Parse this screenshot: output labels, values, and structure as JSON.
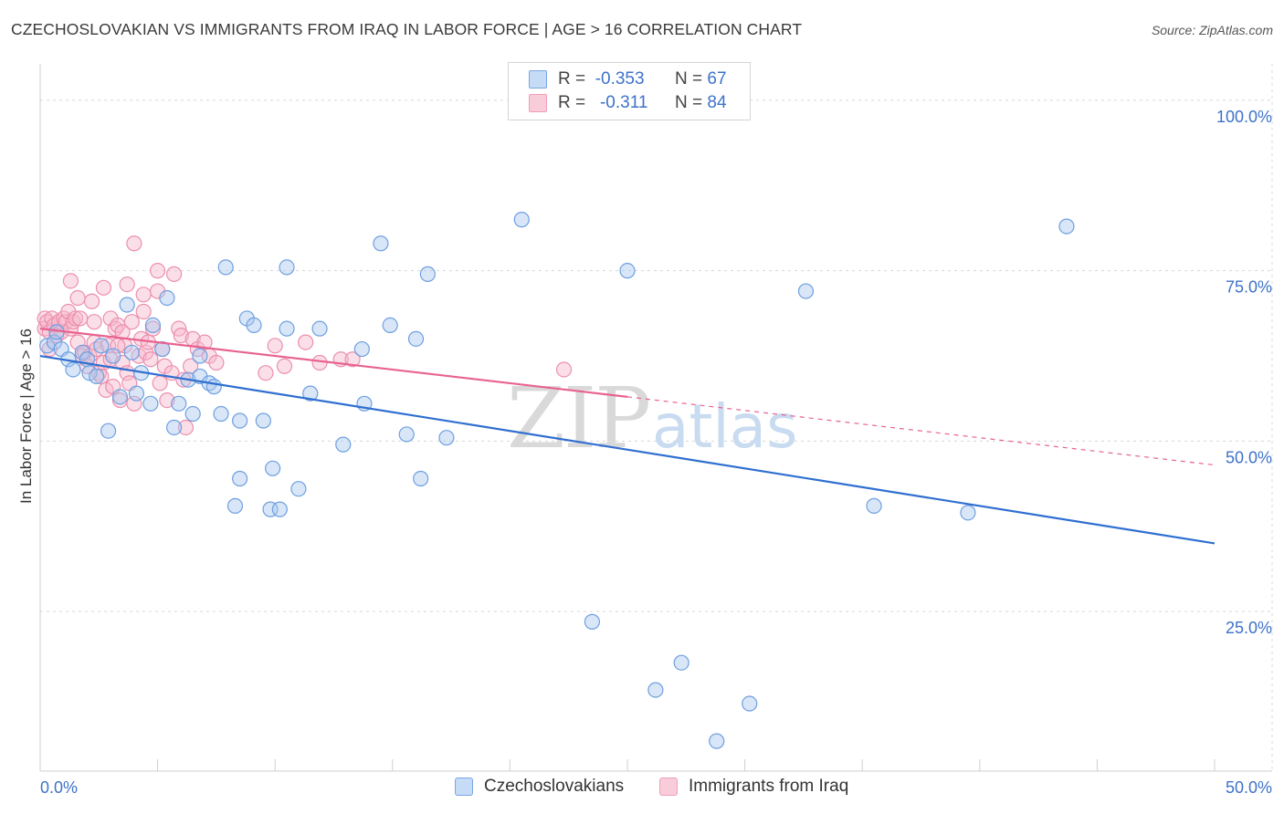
{
  "title": "CZECHOSLOVAKIAN VS IMMIGRANTS FROM IRAQ IN LABOR FORCE | AGE > 16 CORRELATION CHART",
  "source": "Source: ZipAtlas.com",
  "watermark": {
    "zip": "ZIP",
    "atlas": "atlas"
  },
  "colors": {
    "blue_fill": "#a8c8f0",
    "blue_stroke": "#6e9fe0",
    "blue_line": "#2f6fd0",
    "pink_fill": "#f7b8cc",
    "pink_stroke": "#ec8fad",
    "pink_line": "#e8628f",
    "value_text": "#3d72c9",
    "grid": "#d8d8d8"
  },
  "legend": {
    "rows": [
      {
        "r_label": "R =",
        "r_value": "-0.353",
        "n_label": "N =",
        "n_value": "67"
      },
      {
        "r_label": "R =",
        "r_value": "-0.311",
        "n_label": "N =",
        "n_value": "84"
      }
    ]
  },
  "bottom_legend": [
    "Czechoslovakians",
    "Immigrants from Iraq"
  ],
  "chart_data": {
    "type": "scatter",
    "title": "CZECHOSLOVAKIAN VS IMMIGRANTS FROM IRAQ IN LABOR FORCE | AGE > 16 CORRELATION CHART",
    "xlabel": "",
    "ylabel": "In Labor Force | Age > 16",
    "xlim": [
      0,
      50
    ],
    "ylim": [
      2,
      104
    ],
    "x_tick_labels": [
      "0.0%",
      "50.0%"
    ],
    "y_tick_labels": [
      "100.0%",
      "75.0%",
      "50.0%",
      "25.0%"
    ],
    "y_ticks": [
      100,
      75,
      50,
      25
    ],
    "grid": true,
    "legend_position": "top-center",
    "series": [
      {
        "name": "Czechoslovakians",
        "color": "#a8c8f0",
        "r": -0.353,
        "n": 67,
        "trend": {
          "x": [
            0,
            50
          ],
          "y": [
            62.5,
            35.0
          ]
        },
        "points": [
          [
            0.3,
            64.0
          ],
          [
            0.6,
            64.5
          ],
          [
            0.9,
            63.5
          ],
          [
            1.2,
            62.0
          ],
          [
            1.4,
            60.5
          ],
          [
            1.8,
            63.0
          ],
          [
            2.0,
            62.0
          ],
          [
            2.1,
            60.0
          ],
          [
            2.4,
            59.5
          ],
          [
            2.6,
            64.0
          ],
          [
            2.9,
            51.5
          ],
          [
            3.1,
            62.5
          ],
          [
            3.4,
            56.5
          ],
          [
            3.7,
            70.0
          ],
          [
            3.9,
            63.0
          ],
          [
            4.1,
            57.0
          ],
          [
            4.3,
            60.0
          ],
          [
            4.7,
            55.5
          ],
          [
            4.8,
            67.0
          ],
          [
            5.2,
            63.5
          ],
          [
            5.4,
            71.0
          ],
          [
            5.7,
            52.0
          ],
          [
            5.9,
            55.5
          ],
          [
            6.3,
            59.0
          ],
          [
            6.5,
            54.0
          ],
          [
            6.8,
            62.5
          ],
          [
            6.8,
            59.5
          ],
          [
            7.2,
            58.5
          ],
          [
            7.4,
            58.0
          ],
          [
            7.7,
            54.0
          ],
          [
            7.9,
            75.5
          ],
          [
            8.3,
            40.5
          ],
          [
            8.5,
            44.5
          ],
          [
            8.5,
            53.0
          ],
          [
            8.8,
            68.0
          ],
          [
            9.1,
            67.0
          ],
          [
            9.5,
            53.0
          ],
          [
            9.8,
            40.0
          ],
          [
            9.9,
            46.0
          ],
          [
            10.2,
            40.0
          ],
          [
            10.5,
            75.5
          ],
          [
            10.5,
            66.5
          ],
          [
            11.0,
            43.0
          ],
          [
            11.5,
            57.0
          ],
          [
            11.9,
            66.5
          ],
          [
            12.9,
            49.5
          ],
          [
            13.7,
            63.5
          ],
          [
            13.8,
            55.5
          ],
          [
            14.5,
            79.0
          ],
          [
            14.9,
            67.0
          ],
          [
            15.6,
            51.0
          ],
          [
            16.0,
            65.0
          ],
          [
            16.5,
            74.5
          ],
          [
            16.2,
            44.5
          ],
          [
            17.3,
            50.5
          ],
          [
            20.5,
            82.5
          ],
          [
            23.5,
            23.5
          ],
          [
            25.0,
            75.0
          ],
          [
            26.2,
            13.5
          ],
          [
            27.3,
            17.5
          ],
          [
            28.8,
            6.0
          ],
          [
            30.2,
            11.5
          ],
          [
            32.6,
            72.0
          ],
          [
            35.5,
            40.5
          ],
          [
            39.5,
            39.5
          ],
          [
            43.7,
            81.5
          ],
          [
            0.7,
            66.0
          ]
        ]
      },
      {
        "name": "Immigrants from Iraq",
        "color": "#f7b8cc",
        "r": -0.311,
        "n": 84,
        "trend": {
          "x": [
            0,
            25
          ],
          "y": [
            66.5,
            56.5
          ]
        },
        "trend_dashed": {
          "x": [
            25,
            50
          ],
          "y": [
            56.5,
            46.5
          ]
        },
        "points": [
          [
            0.2,
            68.0
          ],
          [
            0.2,
            66.5
          ],
          [
            0.3,
            67.5
          ],
          [
            0.4,
            66.0
          ],
          [
            0.5,
            68.0
          ],
          [
            0.6,
            67.0
          ],
          [
            0.7,
            65.5
          ],
          [
            0.8,
            67.5
          ],
          [
            0.9,
            66.0
          ],
          [
            1.0,
            68.0
          ],
          [
            1.1,
            67.5
          ],
          [
            1.2,
            69.0
          ],
          [
            1.3,
            66.5
          ],
          [
            1.3,
            73.5
          ],
          [
            1.4,
            67.5
          ],
          [
            1.5,
            68.0
          ],
          [
            1.6,
            64.5
          ],
          [
            1.7,
            68.0
          ],
          [
            1.8,
            62.5
          ],
          [
            1.9,
            63.0
          ],
          [
            2.0,
            61.0
          ],
          [
            2.1,
            62.5
          ],
          [
            2.2,
            70.5
          ],
          [
            2.3,
            64.5
          ],
          [
            2.3,
            67.5
          ],
          [
            2.4,
            63.5
          ],
          [
            2.5,
            60.0
          ],
          [
            2.6,
            59.5
          ],
          [
            2.7,
            61.5
          ],
          [
            2.7,
            72.5
          ],
          [
            2.8,
            57.5
          ],
          [
            2.9,
            64.0
          ],
          [
            3.0,
            62.0
          ],
          [
            3.0,
            68.0
          ],
          [
            3.1,
            58.0
          ],
          [
            3.2,
            66.5
          ],
          [
            3.3,
            67.0
          ],
          [
            3.4,
            56.0
          ],
          [
            3.5,
            61.5
          ],
          [
            3.5,
            66.0
          ],
          [
            3.6,
            64.0
          ],
          [
            3.7,
            73.0
          ],
          [
            3.7,
            60.0
          ],
          [
            3.8,
            58.5
          ],
          [
            3.9,
            67.5
          ],
          [
            4.0,
            79.0
          ],
          [
            4.0,
            55.5
          ],
          [
            4.2,
            62.5
          ],
          [
            4.3,
            65.0
          ],
          [
            4.4,
            71.5
          ],
          [
            4.4,
            69.0
          ],
          [
            4.5,
            63.0
          ],
          [
            4.6,
            64.5
          ],
          [
            4.7,
            62.0
          ],
          [
            4.8,
            66.5
          ],
          [
            5.0,
            72.0
          ],
          [
            5.0,
            75.0
          ],
          [
            5.1,
            58.5
          ],
          [
            5.2,
            63.5
          ],
          [
            5.3,
            61.0
          ],
          [
            5.4,
            56.0
          ],
          [
            5.6,
            60.0
          ],
          [
            5.7,
            74.5
          ],
          [
            5.9,
            66.5
          ],
          [
            6.0,
            65.5
          ],
          [
            6.1,
            59.0
          ],
          [
            6.2,
            52.0
          ],
          [
            6.4,
            61.0
          ],
          [
            6.5,
            65.0
          ],
          [
            6.7,
            63.5
          ],
          [
            7.0,
            64.5
          ],
          [
            7.2,
            62.5
          ],
          [
            7.5,
            61.5
          ],
          [
            9.6,
            60.0
          ],
          [
            10.0,
            64.0
          ],
          [
            10.4,
            61.0
          ],
          [
            11.3,
            64.5
          ],
          [
            11.9,
            61.5
          ],
          [
            12.8,
            62.0
          ],
          [
            13.3,
            62.0
          ],
          [
            22.3,
            60.5
          ],
          [
            0.4,
            63.5
          ],
          [
            1.6,
            71.0
          ],
          [
            3.3,
            64.0
          ]
        ]
      }
    ]
  }
}
